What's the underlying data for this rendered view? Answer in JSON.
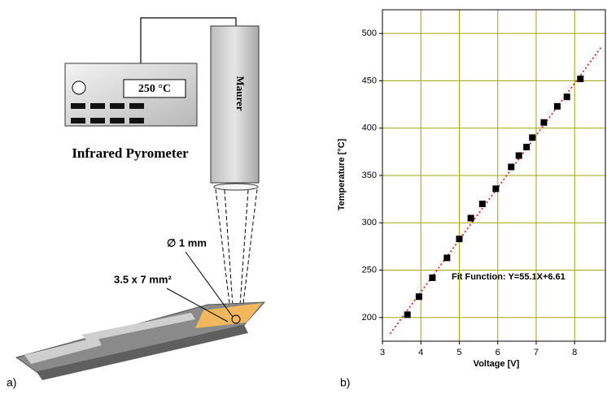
{
  "panel_labels": [
    "a)",
    "b)"
  ],
  "diagram": {
    "display": "250 °C",
    "pyrometer_brand": "Maurer",
    "device_label": "Infrared Pyrometer",
    "spot_label": "∅ 1 mm",
    "pad_label": "3.5 x 7 mm²"
  },
  "chart_data": {
    "type": "scatter",
    "x_label": "Voltage [V]",
    "y_label": "Temperature [°C]",
    "annotation": "Fit Function: Y=55.1X+6.61",
    "xlim": [
      3,
      8.8
    ],
    "ylim": [
      175,
      525
    ],
    "xticks": [
      3,
      4,
      5,
      6,
      7,
      8
    ],
    "yticks": [
      200,
      250,
      300,
      350,
      400,
      450,
      500
    ],
    "grid": true,
    "grid_color": "#a3a300",
    "x": [
      3.65,
      3.95,
      4.3,
      4.68,
      5.0,
      5.3,
      5.6,
      5.95,
      6.35,
      6.55,
      6.75,
      6.9,
      7.2,
      7.55,
      7.8,
      8.15
    ],
    "values": [
      203,
      222,
      242,
      263,
      283,
      305,
      320,
      336,
      359,
      371,
      380,
      390,
      406,
      423,
      433,
      452
    ],
    "color": "#000000",
    "fit_line": {
      "x": [
        3.2,
        8.7
      ],
      "values": [
        182.9,
        486.0
      ],
      "color": "#e00000"
    }
  }
}
